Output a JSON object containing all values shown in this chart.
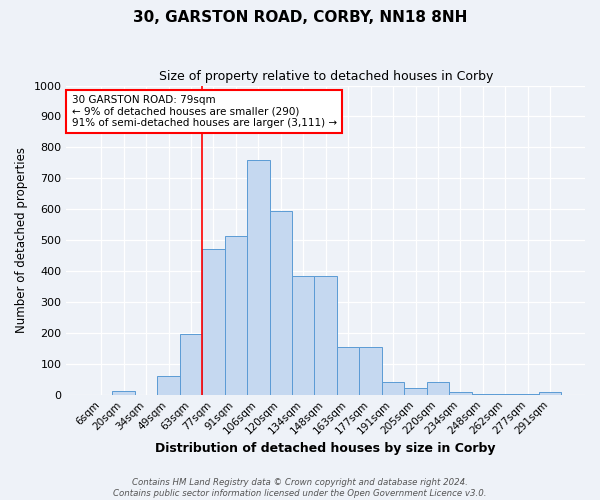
{
  "title": "30, GARSTON ROAD, CORBY, NN18 8NH",
  "subtitle": "Size of property relative to detached houses in Corby",
  "xlabel": "Distribution of detached houses by size in Corby",
  "ylabel": "Number of detached properties",
  "categories": [
    "6sqm",
    "20sqm",
    "34sqm",
    "49sqm",
    "63sqm",
    "77sqm",
    "91sqm",
    "106sqm",
    "120sqm",
    "134sqm",
    "148sqm",
    "163sqm",
    "177sqm",
    "191sqm",
    "205sqm",
    "220sqm",
    "234sqm",
    "248sqm",
    "262sqm",
    "277sqm",
    "291sqm"
  ],
  "values": [
    0,
    12,
    0,
    62,
    195,
    470,
    515,
    760,
    595,
    385,
    385,
    155,
    155,
    40,
    22,
    42,
    10,
    2,
    2,
    2,
    8
  ],
  "bar_color": "#c5d8f0",
  "bar_edge_color": "#5b9bd5",
  "ylim": [
    0,
    1000
  ],
  "yticks": [
    0,
    100,
    200,
    300,
    400,
    500,
    600,
    700,
    800,
    900,
    1000
  ],
  "vline_idx": 5,
  "vline_color": "red",
  "annotation_box_text": "30 GARSTON ROAD: 79sqm\n← 9% of detached houses are smaller (290)\n91% of semi-detached houses are larger (3,111) →",
  "footer_text": "Contains HM Land Registry data © Crown copyright and database right 2024.\nContains public sector information licensed under the Open Government Licence v3.0.",
  "bg_color": "#eef2f8",
  "grid_color": "white"
}
